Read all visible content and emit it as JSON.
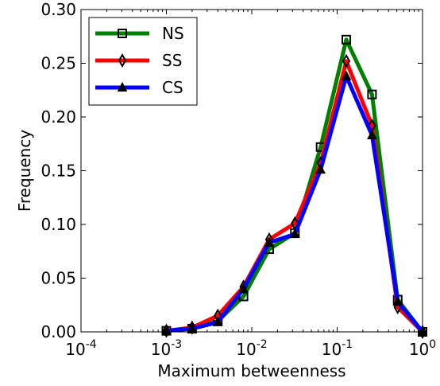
{
  "chart_data": {
    "type": "line",
    "title": "",
    "xlabel": "Maximum betweenness",
    "ylabel": "Frequency",
    "xscale": "log",
    "xlim": [
      0.0001,
      1
    ],
    "ylim": [
      0,
      0.3
    ],
    "grid": false,
    "legend_position": "top-left",
    "x_ticks": [
      {
        "value": 0.0001,
        "base": "10",
        "exp": "-4"
      },
      {
        "value": 0.001,
        "base": "10",
        "exp": "-3"
      },
      {
        "value": 0.01,
        "base": "10",
        "exp": "-2"
      },
      {
        "value": 0.1,
        "base": "10",
        "exp": "-1"
      },
      {
        "value": 1,
        "base": "10",
        "exp": "0"
      }
    ],
    "y_ticks": [
      {
        "value": 0.0,
        "label": "0.00"
      },
      {
        "value": 0.05,
        "label": "0.05"
      },
      {
        "value": 0.1,
        "label": "0.10"
      },
      {
        "value": 0.15,
        "label": "0.15"
      },
      {
        "value": 0.2,
        "label": "0.20"
      },
      {
        "value": 0.25,
        "label": "0.25"
      },
      {
        "value": 0.3,
        "label": "0.30"
      }
    ],
    "x": [
      0.001,
      0.002,
      0.004,
      0.008,
      0.016,
      0.032,
      0.064,
      0.128,
      0.256,
      0.512,
      1.0
    ],
    "series": [
      {
        "name": "NS",
        "color": "#008000",
        "marker": "square",
        "values": [
          0.001,
          0.003,
          0.01,
          0.033,
          0.077,
          0.092,
          0.172,
          0.272,
          0.221,
          0.03,
          0.0
        ]
      },
      {
        "name": "SS",
        "color": "#ff0000",
        "marker": "diamond",
        "values": [
          0.001,
          0.004,
          0.015,
          0.042,
          0.086,
          0.101,
          0.157,
          0.252,
          0.192,
          0.023,
          0.0
        ]
      },
      {
        "name": "CS",
        "color": "#0000ff",
        "marker": "triangle",
        "values": [
          0.001,
          0.003,
          0.009,
          0.04,
          0.083,
          0.091,
          0.151,
          0.238,
          0.183,
          0.028,
          0.0
        ]
      }
    ]
  }
}
